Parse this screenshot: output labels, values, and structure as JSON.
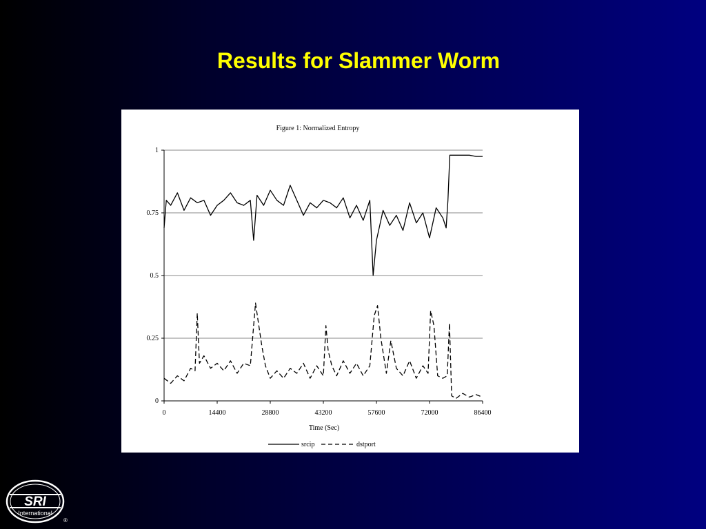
{
  "slide": {
    "title": "Results for Slammer Worm",
    "background_colors": [
      "#000000",
      "#000080"
    ],
    "title_color": "#ffff00"
  },
  "logo": {
    "main_text": "SRI",
    "sub_text": "International",
    "mark": "®"
  },
  "chart_data": {
    "type": "line",
    "title": "Figure 1: Normalized Entropy",
    "xlabel": "Time (Sec)",
    "ylabel": "",
    "xlim": [
      0,
      86400
    ],
    "ylim": [
      0,
      1
    ],
    "x_ticks": [
      0,
      14400,
      28800,
      43200,
      57600,
      72000,
      86400
    ],
    "y_ticks": [
      0,
      0.25,
      0.5,
      0.75,
      1
    ],
    "y_tick_labels": [
      "0",
      "0.25",
      "0.5",
      "0.75",
      "1"
    ],
    "grid": "horizontal",
    "legend": "bottom",
    "series": [
      {
        "name": "srcip",
        "style": "solid",
        "x": [
          0,
          600,
          1800,
          3600,
          5400,
          7200,
          9000,
          10800,
          12600,
          14400,
          16200,
          18000,
          19800,
          21600,
          23400,
          24300,
          25200,
          27000,
          28800,
          30600,
          32400,
          34200,
          36000,
          37800,
          39600,
          41400,
          43200,
          45000,
          46800,
          48600,
          50400,
          52200,
          54000,
          55800,
          56700,
          57600,
          59400,
          61200,
          63000,
          64800,
          66600,
          68400,
          70200,
          72000,
          73800,
          75600,
          76500,
          77000,
          77500,
          79200,
          81000,
          82800,
          84600,
          86400
        ],
        "y": [
          0.69,
          0.8,
          0.78,
          0.83,
          0.76,
          0.81,
          0.79,
          0.8,
          0.74,
          0.78,
          0.8,
          0.83,
          0.79,
          0.78,
          0.8,
          0.64,
          0.82,
          0.78,
          0.84,
          0.8,
          0.78,
          0.86,
          0.8,
          0.74,
          0.79,
          0.77,
          0.8,
          0.79,
          0.77,
          0.81,
          0.73,
          0.78,
          0.72,
          0.8,
          0.5,
          0.64,
          0.76,
          0.7,
          0.74,
          0.68,
          0.79,
          0.71,
          0.75,
          0.65,
          0.77,
          0.73,
          0.69,
          0.8,
          0.98,
          0.98,
          0.98,
          0.98,
          0.975,
          0.975
        ]
      },
      {
        "name": "dstport",
        "style": "dashed",
        "x": [
          0,
          1800,
          3600,
          5400,
          7200,
          8400,
          9000,
          9600,
          10800,
          12600,
          14400,
          16200,
          18000,
          19800,
          21600,
          23400,
          24800,
          25400,
          26500,
          27500,
          28800,
          30600,
          32400,
          34200,
          36000,
          37800,
          39600,
          41400,
          43200,
          43900,
          44500,
          45500,
          46800,
          48600,
          50400,
          52200,
          54000,
          55800,
          57000,
          57900,
          58800,
          60300,
          61500,
          63000,
          64800,
          66600,
          68400,
          70200,
          71600,
          72300,
          73200,
          74200,
          75600,
          76800,
          77400,
          78000,
          79200,
          81000,
          82800,
          84600,
          86400
        ],
        "y": [
          0.09,
          0.07,
          0.1,
          0.08,
          0.13,
          0.12,
          0.35,
          0.15,
          0.18,
          0.13,
          0.15,
          0.12,
          0.16,
          0.11,
          0.15,
          0.14,
          0.39,
          0.33,
          0.22,
          0.14,
          0.09,
          0.12,
          0.09,
          0.13,
          0.11,
          0.15,
          0.09,
          0.14,
          0.1,
          0.3,
          0.2,
          0.14,
          0.1,
          0.16,
          0.11,
          0.15,
          0.1,
          0.14,
          0.34,
          0.38,
          0.25,
          0.11,
          0.24,
          0.13,
          0.1,
          0.16,
          0.09,
          0.14,
          0.11,
          0.36,
          0.3,
          0.1,
          0.09,
          0.1,
          0.31,
          0.02,
          0.01,
          0.03,
          0.015,
          0.025,
          0.015
        ]
      }
    ]
  }
}
